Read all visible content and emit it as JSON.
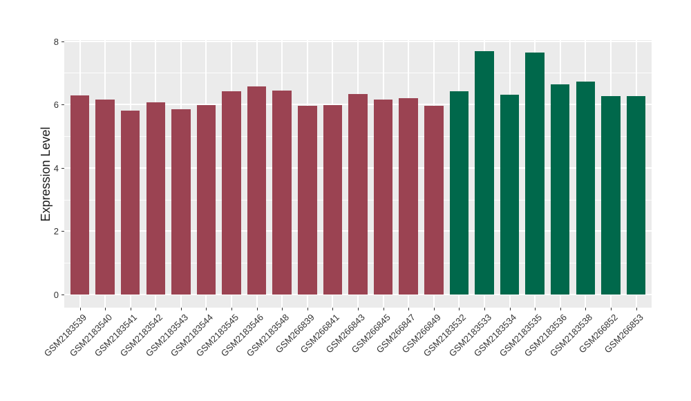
{
  "figure": {
    "background": "#FFFFFF"
  },
  "chart_data": {
    "type": "bar",
    "title": "",
    "xlabel": "",
    "ylabel": "Expression Level",
    "categories": [
      "GSM2183539",
      "GSM2183540",
      "GSM2183541",
      "GSM2183542",
      "GSM2183543",
      "GSM2183544",
      "GSM2183545",
      "GSM2183546",
      "GSM2183548",
      "GSM266839",
      "GSM266841",
      "GSM266843",
      "GSM266845",
      "GSM266847",
      "GSM266849",
      "GSM2183532",
      "GSM2183533",
      "GSM2183534",
      "GSM2183535",
      "GSM2183536",
      "GSM2183538",
      "GSM266852",
      "GSM266853"
    ],
    "values": [
      6.28,
      6.15,
      5.81,
      6.08,
      5.86,
      5.99,
      6.42,
      6.58,
      6.45,
      5.95,
      5.99,
      6.33,
      6.15,
      6.21,
      5.95,
      6.43,
      7.69,
      6.3,
      7.64,
      6.64,
      6.73,
      6.26,
      6.26
    ],
    "bar_groups": [
      0,
      0,
      0,
      0,
      0,
      0,
      0,
      0,
      0,
      0,
      0,
      0,
      0,
      0,
      0,
      1,
      1,
      1,
      1,
      1,
      1,
      1,
      1
    ],
    "group_colors": [
      "#9B4352",
      "#00684B"
    ],
    "y_ticks": [
      0,
      2,
      4,
      6,
      8
    ],
    "y_minor_ticks": [
      1,
      3,
      5,
      7
    ],
    "ylim": [
      -0.4,
      8.08
    ],
    "grid": "on",
    "legend": "none",
    "panel_bg": "#EBEBEB",
    "grid_color": "#FFFFFF",
    "axis_text_color": "#333333",
    "axis_title_color": "#1A1A1A",
    "x_label_rotation_deg": 45
  }
}
